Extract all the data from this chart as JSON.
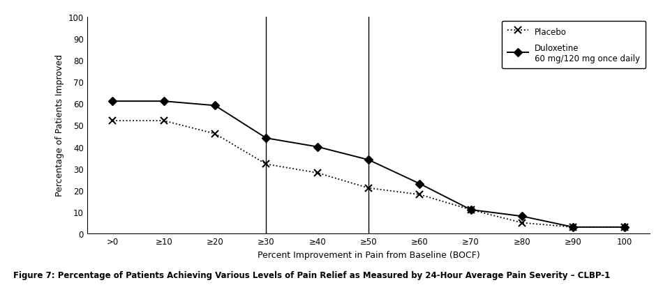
{
  "x_labels": [
    ">0",
    "≥10",
    "≥20",
    "≥30",
    "≥40",
    "≥50",
    "≥60",
    "≥70",
    "≥80",
    "≥90",
    "100"
  ],
  "x_positions": [
    0,
    1,
    2,
    3,
    4,
    5,
    6,
    7,
    8,
    9,
    10
  ],
  "placebo_values": [
    52,
    52,
    46,
    32,
    28,
    21,
    18,
    11,
    5,
    3,
    3
  ],
  "duloxetine_values": [
    61,
    61,
    59,
    44,
    40,
    34,
    23,
    11,
    8,
    3,
    3
  ],
  "vline_positions": [
    3,
    5
  ],
  "ylabel": "Percentage of Patients Improved",
  "xlabel": "Percent Improvement in Pain from Baseline (BOCF)",
  "ylim": [
    0,
    100
  ],
  "yticks": [
    0,
    10,
    20,
    30,
    40,
    50,
    60,
    70,
    80,
    90,
    100
  ],
  "legend_placebo": "Placebo",
  "legend_duloxetine": "Duloxetine\n60 mg/120 mg once daily",
  "figure_caption": "Figure 7: Percentage of Patients Achieving Various Levels of Pain Relief as Measured by 24-Hour Average Pain Severity – CLBP-1",
  "line_color": "black",
  "background_color": "white"
}
